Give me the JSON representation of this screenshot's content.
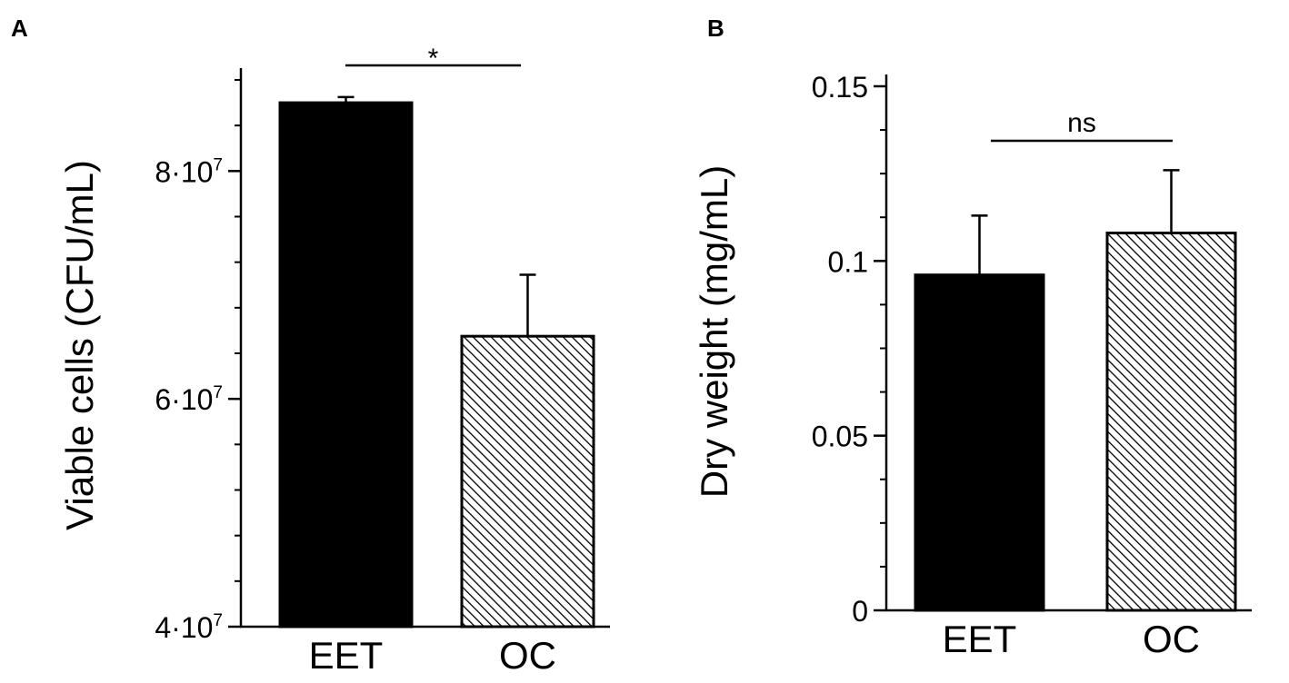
{
  "chart_data": [
    {
      "panel": "A",
      "type": "bar",
      "categories": [
        "EET",
        "OC"
      ],
      "values": [
        86000000,
        65500000
      ],
      "errors": [
        500000,
        5400000
      ],
      "bar_styles": [
        "solid",
        "hatched"
      ],
      "title": "",
      "xlabel": "",
      "ylabel": "Viable cells (CFU/mL)",
      "ylim": [
        40000000,
        88000000
      ],
      "y_ticks": [
        {
          "value": 40000000,
          "base": "4·10",
          "exp": "7"
        },
        {
          "value": 60000000,
          "base": "6·10",
          "exp": "7"
        },
        {
          "value": 80000000,
          "base": "8·10",
          "exp": "7"
        }
      ],
      "significance": "*",
      "grid": false
    },
    {
      "panel": "B",
      "type": "bar",
      "categories": [
        "EET",
        "OC"
      ],
      "values": [
        0.096,
        0.108
      ],
      "errors": [
        0.017,
        0.018
      ],
      "bar_styles": [
        "solid",
        "hatched"
      ],
      "title": "",
      "xlabel": "",
      "ylabel": "Dry weight (mg/mL)",
      "ylim": [
        0,
        0.15
      ],
      "y_ticks": [
        {
          "value": 0,
          "label": "0"
        },
        {
          "value": 0.05,
          "label": "0.05"
        },
        {
          "value": 0.1,
          "label": "0.1"
        },
        {
          "value": 0.15,
          "label": "0.15"
        }
      ],
      "significance": "ns",
      "grid": false
    }
  ],
  "colors": {
    "solid_bar": "#000000",
    "hatch": "#000000",
    "background": "#ffffff"
  }
}
